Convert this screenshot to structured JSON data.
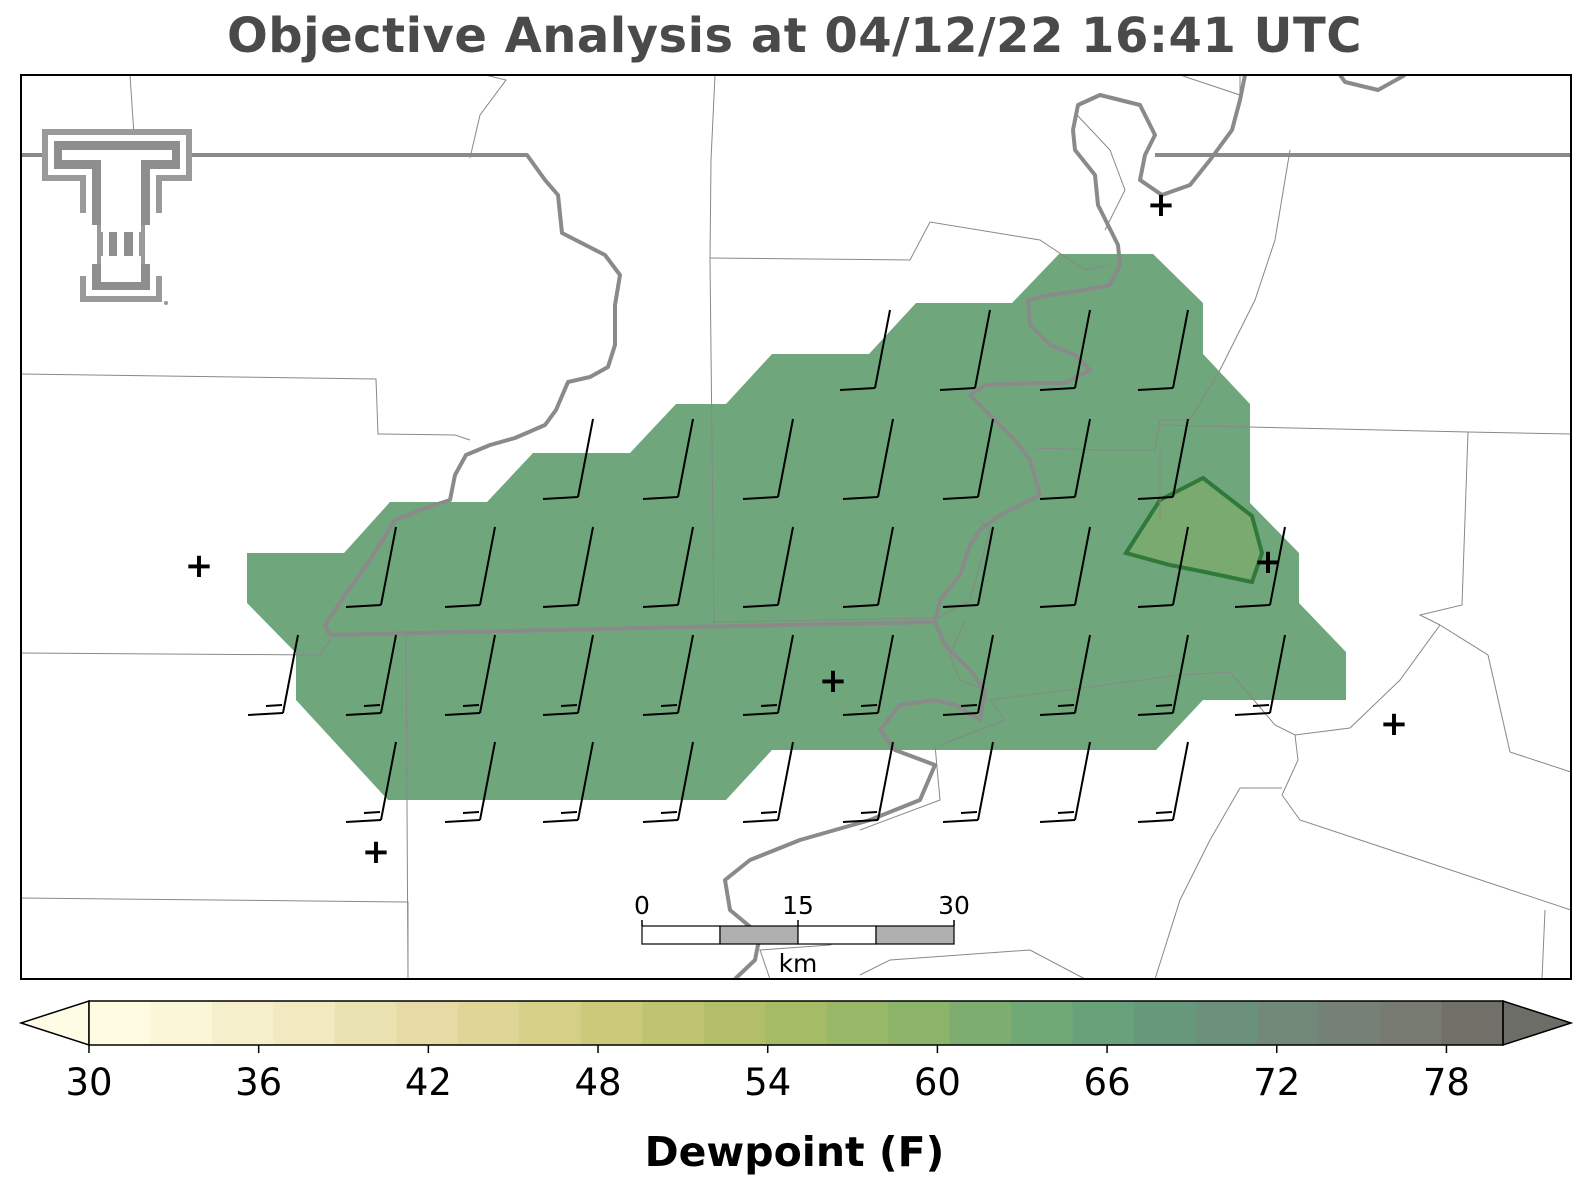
{
  "title": "Objective Analysis at 04/12/22 16:41 UTC",
  "colorbar": {
    "label": "Dewpoint (F)",
    "min": 30,
    "max": 80,
    "step": 2,
    "ticks": [
      "30",
      "36",
      "42",
      "48",
      "54",
      "60",
      "66",
      "72",
      "78"
    ],
    "extend": "both",
    "colors": [
      "#fefbe0",
      "#fbf6d6",
      "#f6efcb",
      "#f1e9bf",
      "#ebe2b2",
      "#e6dba4",
      "#ded596",
      "#d5cf88",
      "#cbca7b",
      "#bfc470",
      "#b2bf68",
      "#a5bb66",
      "#98b767",
      "#8bb36a",
      "#7dae6f",
      "#70a975",
      "#68a27a",
      "#66997c",
      "#6b917c",
      "#72897a",
      "#758176",
      "#767a70",
      "#707068"
    ],
    "under_color": "#fffce6",
    "over_color": "#6d6d68"
  },
  "scale_bar": {
    "labels": [
      "0",
      "15",
      "30"
    ],
    "unit": "km"
  },
  "logo": "texas-tech-double-t-logo",
  "field": {
    "dewpoint_fill_color": "#6fa67c",
    "dewpoint_high_color": "#7aaa6f"
  },
  "observations": {
    "station_marker": "+"
  }
}
